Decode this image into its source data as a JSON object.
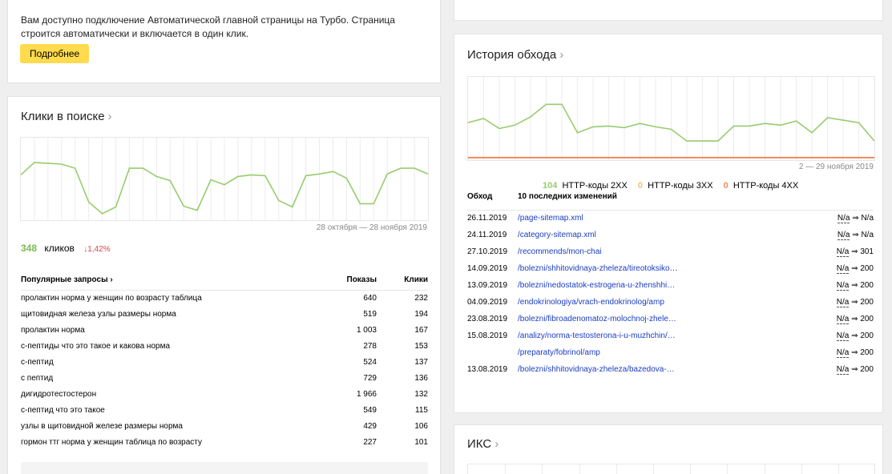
{
  "turbo": {
    "text_line1": "Вам доступно подключение Автоматической главной страницы на Турбо. Страница",
    "text_line2": "строится автоматически и включается в один клик.",
    "button": "Подробнее"
  },
  "clicks": {
    "title": "Клики в поиске",
    "chevron": "›",
    "period": "28 октября — 28 ноября 2019",
    "total": "348",
    "total_label": "кликов",
    "change": "↓1,42%",
    "table_headers": {
      "query": "Популярные запросы ›",
      "shows": "Показы",
      "clicks": "Клики"
    },
    "rows": [
      {
        "query": "пролактин норма у женщин по возрасту таблица",
        "shows": "640",
        "clicks": "232"
      },
      {
        "query": "щитовидная железа узлы размеры норма",
        "shows": "519",
        "clicks": "194"
      },
      {
        "query": "пролактин норма",
        "shows": "1 003",
        "clicks": "167"
      },
      {
        "query": "с-пептиды что это такое и какова норма",
        "shows": "278",
        "clicks": "153"
      },
      {
        "query": "с-пептид",
        "shows": "524",
        "clicks": "137"
      },
      {
        "query": "с пептид",
        "shows": "729",
        "clicks": "136"
      },
      {
        "query": "дигидротестостерон",
        "shows": "1 966",
        "clicks": "132"
      },
      {
        "query": "с-пептид что это такое",
        "shows": "549",
        "clicks": "115"
      },
      {
        "query": "узлы в щитовидной железе размеры норма",
        "shows": "429",
        "clicks": "106"
      },
      {
        "query": "гормон ттг норма у женщин таблица по возрасту",
        "shows": "227",
        "clicks": "101"
      }
    ],
    "chart_data": {
      "type": "line",
      "series": [
        {
          "values": [
            0.45,
            0.3,
            0.31,
            0.32,
            0.37,
            0.78,
            0.92,
            0.84,
            0.37,
            0.37,
            0.47,
            0.52,
            0.83,
            0.88,
            0.51,
            0.57,
            0.47,
            0.45,
            0.46,
            0.76,
            0.84,
            0.46,
            0.44,
            0.41,
            0.49,
            0.8,
            0.8,
            0.44,
            0.37,
            0.37,
            0.44
          ]
        }
      ],
      "grid": true,
      "colors": {
        "line": "#98cc6e"
      }
    }
  },
  "crawl": {
    "title": "История обхода",
    "chevron": "›",
    "period": "2 — 29 ноября 2019",
    "legend": [
      {
        "value": "104",
        "label": "HTTP-коды 2XX",
        "color": "#98cc6e"
      },
      {
        "value": "0",
        "label": "HTTP-коды 3XX",
        "color": "#f5c36a"
      },
      {
        "value": "0",
        "label": "HTTP-коды 4XX",
        "color": "#f08a5d"
      }
    ],
    "chart_data": {
      "type": "line",
      "series": [
        {
          "name": "HTTP-коды 2XX",
          "values": [
            0.55,
            0.5,
            0.62,
            0.58,
            0.48,
            0.33,
            0.33,
            0.67,
            0.6,
            0.59,
            0.61,
            0.56,
            0.6,
            0.63,
            0.77,
            0.77,
            0.77,
            0.59,
            0.59,
            0.56,
            0.58,
            0.53,
            0.67,
            0.49,
            0.52,
            0.55,
            0.77
          ]
        },
        {
          "name": "HTTP-коды 4XX",
          "values": [
            0.97,
            0.97,
            0.97,
            0.97,
            0.97,
            0.97,
            0.97,
            0.97,
            0.97,
            0.97,
            0.97,
            0.97,
            0.97,
            0.97,
            0.97,
            0.97,
            0.97,
            0.97,
            0.97,
            0.97,
            0.97,
            0.97,
            0.97,
            0.97,
            0.97,
            0.97,
            0.97
          ]
        }
      ],
      "grid": true
    },
    "table_headers": {
      "date": "Обход",
      "changes": "10 последних изменений"
    },
    "rows": [
      {
        "date": "26.11.2019",
        "url": "/page-sitemap.xml",
        "from": "N/a",
        "arrow": "⇒",
        "to": "N/a"
      },
      {
        "date": "24.11.2019",
        "url": "/category-sitemap.xml",
        "from": "N/a",
        "arrow": "⇒",
        "to": "N/a"
      },
      {
        "date": "27.10.2019",
        "url": "/recommends/mon-chai",
        "from": "N/a",
        "arrow": "⇒",
        "to": "301"
      },
      {
        "date": "14.09.2019",
        "url": "/bolezni/shhitovidnaya-zheleza/tireotoksiko…",
        "from": "N/a",
        "arrow": "⇒",
        "to": "200"
      },
      {
        "date": "13.09.2019",
        "url": "/bolezni/nedostatok-estrogena-u-zhenshhi…",
        "from": "N/a",
        "arrow": "⇒",
        "to": "200"
      },
      {
        "date": "04.09.2019",
        "url": "/endokrinologiya/vrach-endokrinolog/amp",
        "from": "N/a",
        "arrow": "⇒",
        "to": "200"
      },
      {
        "date": "23.08.2019",
        "url": "/bolezni/fibroadenomatoz-molochnoj-zhele…",
        "from": "N/a",
        "arrow": "⇒",
        "to": "200"
      },
      {
        "date": "15.08.2019",
        "url": "/analizy/norma-testosterona-i-u-muzhchin/…",
        "from": "N/a",
        "arrow": "⇒",
        "to": "200"
      },
      {
        "date": "",
        "url": "/preparaty/fobrinol/amp",
        "from": "N/a",
        "arrow": "⇒",
        "to": "200"
      },
      {
        "date": "13.08.2019",
        "url": "/bolezni/shhitovidnaya-zheleza/bazedova-…",
        "from": "N/a",
        "arrow": "⇒",
        "to": "200"
      }
    ]
  },
  "iks": {
    "title": "ИКС",
    "chevron": "›"
  }
}
